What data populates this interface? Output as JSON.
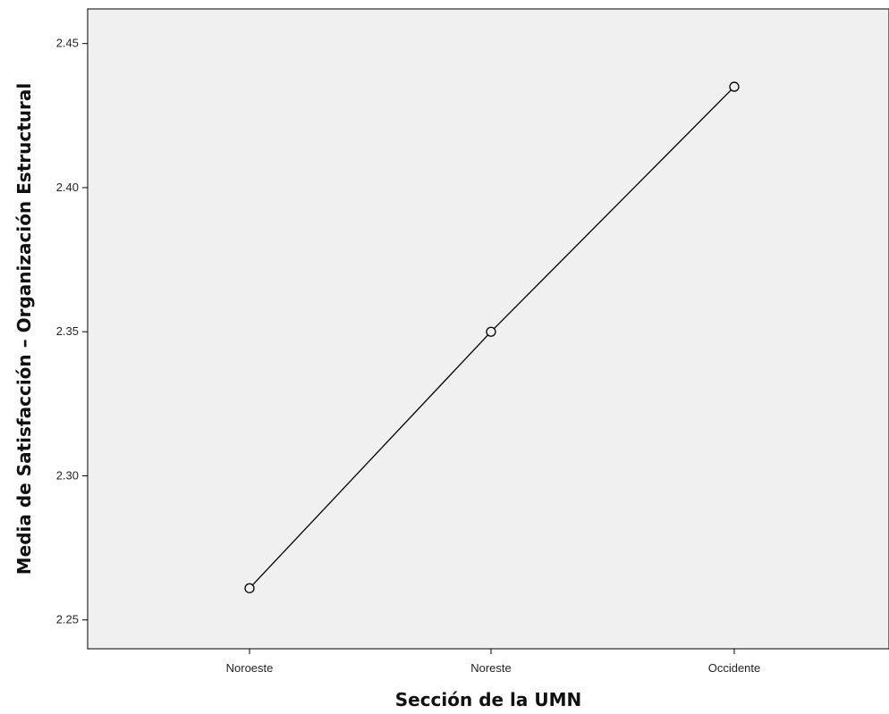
{
  "chart_data": {
    "type": "line",
    "categories": [
      "Noroeste",
      "Noreste",
      "Occidente"
    ],
    "values": [
      2.261,
      2.35,
      2.435
    ],
    "xlabel": "Sección de la UMN",
    "ylabel": "Media de Satisfacción – Organización Estructural",
    "ylim": [
      2.24,
      2.462
    ],
    "yticks": [
      2.25,
      2.3,
      2.35,
      2.4,
      2.45
    ],
    "ytick_labels": [
      "2.25",
      "2.30",
      "2.35",
      "2.40",
      "2.45"
    ],
    "grid": false,
    "marker": "open-circle",
    "colors": {
      "plot_background": "#f0f0f0",
      "line": "#000000",
      "marker_fill": "#f0f0f0"
    }
  }
}
